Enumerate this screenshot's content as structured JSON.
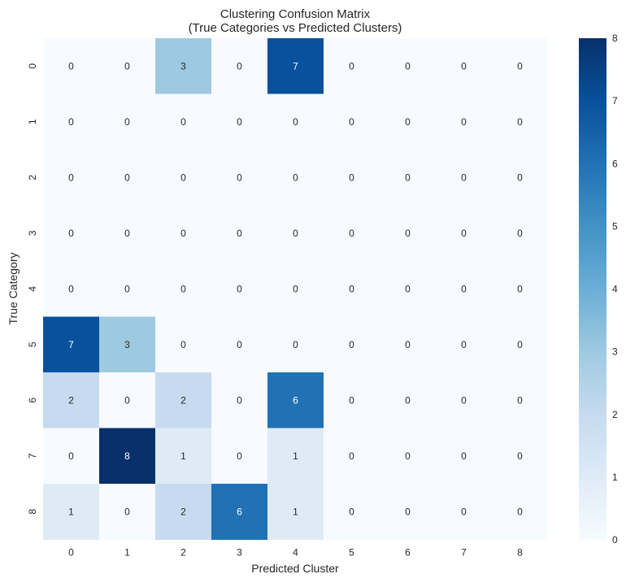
{
  "chart_data": {
    "type": "heatmap",
    "title": "Clustering Confusion Matrix",
    "subtitle": "(True Categories vs Predicted Clusters)",
    "xlabel": "Predicted Cluster",
    "ylabel": "True Category",
    "x_categories": [
      "0",
      "1",
      "2",
      "3",
      "4",
      "5",
      "6",
      "7",
      "8"
    ],
    "y_categories": [
      "0",
      "1",
      "2",
      "3",
      "4",
      "5",
      "6",
      "7",
      "8"
    ],
    "values": [
      [
        0,
        0,
        3,
        0,
        7,
        0,
        0,
        0,
        0
      ],
      [
        0,
        0,
        0,
        0,
        0,
        0,
        0,
        0,
        0
      ],
      [
        0,
        0,
        0,
        0,
        0,
        0,
        0,
        0,
        0
      ],
      [
        0,
        0,
        0,
        0,
        0,
        0,
        0,
        0,
        0
      ],
      [
        0,
        0,
        0,
        0,
        0,
        0,
        0,
        0,
        0
      ],
      [
        7,
        3,
        0,
        0,
        0,
        0,
        0,
        0,
        0
      ],
      [
        2,
        0,
        2,
        0,
        6,
        0,
        0,
        0,
        0
      ],
      [
        0,
        8,
        1,
        0,
        1,
        0,
        0,
        0,
        0
      ],
      [
        1,
        0,
        2,
        6,
        1,
        0,
        0,
        0,
        0
      ]
    ],
    "colormap": "Blues",
    "colorbar": {
      "min": 0,
      "max": 8,
      "ticks": [
        "0",
        "1",
        "2",
        "3",
        "4",
        "5",
        "6",
        "7",
        "8"
      ]
    },
    "annotations": true,
    "grid": false
  }
}
